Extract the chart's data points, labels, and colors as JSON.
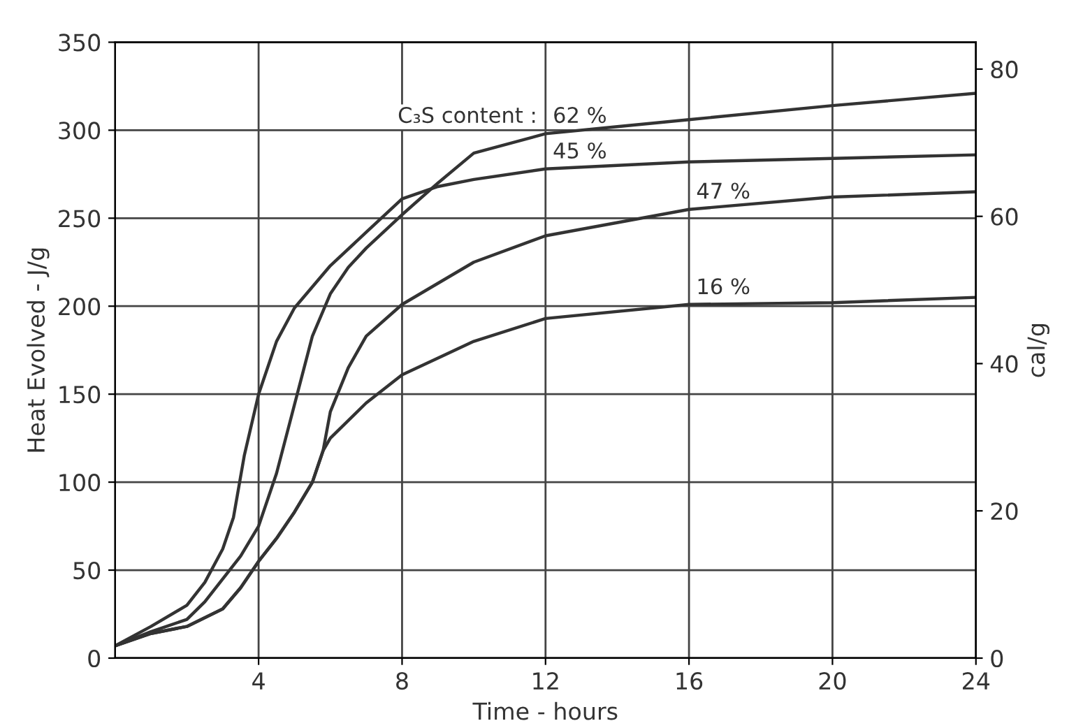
{
  "chart_data": {
    "type": "line",
    "xlabel": "Time - hours",
    "ylabel": "Heat Evolved - J/g",
    "y2label": "cal/g",
    "xlim": [
      0,
      24
    ],
    "xticks": [
      4,
      8,
      12,
      16,
      20,
      24
    ],
    "ylim": [
      0,
      350
    ],
    "yticks": [
      0,
      50,
      100,
      150,
      200,
      250,
      300,
      350
    ],
    "y2lim": [
      0,
      83.65
    ],
    "y2ticks": [
      0,
      20,
      40,
      60,
      80
    ],
    "grid": true,
    "legend": false,
    "marker": "none",
    "line_style": "solid",
    "series": [
      {
        "name": "62 %",
        "color": "#333333",
        "x": [
          0,
          1,
          2,
          2.5,
          3,
          3.5,
          4,
          4.5,
          5,
          5.5,
          6,
          6.5,
          7,
          8,
          9,
          10,
          12,
          14,
          16,
          20,
          24
        ],
        "values": [
          7,
          15,
          22,
          32,
          45,
          58,
          75,
          105,
          144,
          183,
          207,
          222,
          233,
          252,
          270,
          287,
          298,
          302,
          306,
          314,
          321
        ]
      },
      {
        "name": "45 %",
        "color": "#333333",
        "x": [
          0,
          1,
          2,
          2.5,
          3,
          3.3,
          3.6,
          4,
          4.5,
          5,
          6,
          7,
          8,
          9,
          10,
          12,
          16,
          20,
          24
        ],
        "values": [
          7,
          18,
          30,
          43,
          62,
          80,
          115,
          150,
          180,
          199,
          223,
          242,
          261,
          268,
          272,
          278,
          282,
          284,
          286
        ]
      },
      {
        "name": "47 %",
        "color": "#333333",
        "x": [
          0,
          1,
          2,
          3,
          3.5,
          4,
          4.5,
          5,
          5.5,
          5.8,
          6,
          6.5,
          7,
          8,
          10,
          12,
          16,
          20,
          24
        ],
        "values": [
          7,
          14,
          18,
          28,
          40,
          55,
          68,
          83,
          100,
          118,
          140,
          165,
          183,
          201,
          225,
          240,
          255,
          262,
          265
        ]
      },
      {
        "name": "16 %",
        "color": "#333333",
        "x": [
          0,
          1,
          2,
          3,
          3.5,
          4,
          4.5,
          5,
          5.5,
          5.8,
          6,
          7,
          8,
          10,
          12,
          16,
          20,
          24
        ],
        "values": [
          7,
          14,
          18,
          28,
          40,
          55,
          68,
          83,
          100,
          118,
          125,
          145,
          161,
          180,
          193,
          201,
          202,
          205
        ]
      }
    ],
    "annotations": [
      "C₃S content :"
    ]
  }
}
